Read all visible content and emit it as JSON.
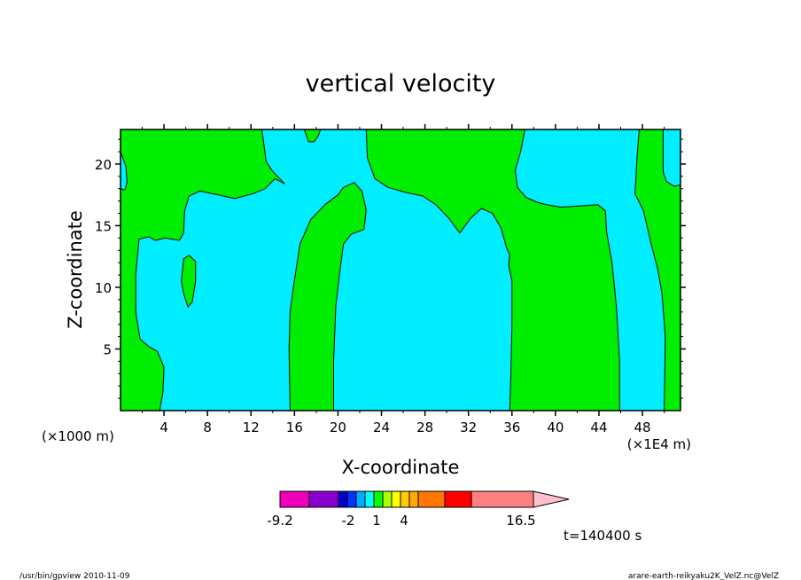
{
  "chart_data": {
    "type": "heatmap",
    "title": "vertical velocity",
    "xlabel": "X-coordinate",
    "ylabel": "Z-coordinate",
    "x_unit_left": "(×1000 m)",
    "x_unit_right": "(×1E4 m)",
    "xlim": [
      0,
      51.5
    ],
    "ylim": [
      0,
      22.8
    ],
    "x_ticks": [
      "4",
      "8",
      "12",
      "16",
      "20",
      "24",
      "28",
      "32",
      "36",
      "40",
      "44",
      "48"
    ],
    "y_ticks": [
      "5",
      "10",
      "15",
      "20"
    ],
    "background_level_color": "#00eeff",
    "positive_region_color": "#00ee00",
    "regions": [
      {
        "level": "green",
        "points": [
          [
            0,
            0
          ],
          [
            3.6,
            0
          ],
          [
            3.9,
            1.5
          ],
          [
            4.0,
            3.5
          ],
          [
            3.4,
            4.8
          ],
          [
            2.6,
            5.2
          ],
          [
            1.8,
            5.8
          ],
          [
            1.4,
            8.0
          ],
          [
            1.4,
            11.0
          ],
          [
            1.7,
            13.9
          ],
          [
            2.6,
            14.1
          ],
          [
            3.2,
            13.8
          ],
          [
            4.1,
            14.0
          ],
          [
            5.4,
            13.8
          ],
          [
            5.8,
            14.4
          ],
          [
            5.9,
            16.2
          ],
          [
            6.3,
            17.4
          ],
          [
            7.3,
            17.8
          ],
          [
            9.0,
            17.5
          ],
          [
            10.5,
            17.2
          ],
          [
            12.2,
            17.6
          ],
          [
            13.3,
            18.0
          ],
          [
            14.2,
            18.8
          ],
          [
            15.1,
            18.4
          ],
          [
            14.0,
            19.4
          ],
          [
            13.4,
            20.2
          ],
          [
            13.0,
            22.8
          ],
          [
            0,
            22.8
          ],
          [
            0,
            21.0
          ],
          [
            0.5,
            19.8
          ],
          [
            0.6,
            18.5
          ],
          [
            0.4,
            17.9
          ],
          [
            0,
            18.0
          ]
        ]
      },
      {
        "level": "green",
        "points": [
          [
            15.6,
            0
          ],
          [
            19.6,
            0
          ],
          [
            19.6,
            4.0
          ],
          [
            19.8,
            8.5
          ],
          [
            20.2,
            11.5
          ],
          [
            20.5,
            13.5
          ],
          [
            21.2,
            14.3
          ],
          [
            22.4,
            14.7
          ],
          [
            22.6,
            16.3
          ],
          [
            22.2,
            17.8
          ],
          [
            21.5,
            18.5
          ],
          [
            20.5,
            18.1
          ],
          [
            20.0,
            17.5
          ],
          [
            18.8,
            16.7
          ],
          [
            17.5,
            15.5
          ],
          [
            16.5,
            13.5
          ],
          [
            15.9,
            10.0
          ],
          [
            15.6,
            8.0
          ],
          [
            15.5,
            5.0
          ]
        ]
      },
      {
        "level": "green",
        "points": [
          [
            22.6,
            22.8
          ],
          [
            22.7,
            20.5
          ],
          [
            23.4,
            18.8
          ],
          [
            24.6,
            18.1
          ],
          [
            26.2,
            17.7
          ],
          [
            27.8,
            17.4
          ],
          [
            29.0,
            16.7
          ],
          [
            30.2,
            15.6
          ],
          [
            31.2,
            14.4
          ],
          [
            32.2,
            15.6
          ],
          [
            33.2,
            16.4
          ],
          [
            34.2,
            16.0
          ],
          [
            35.0,
            14.8
          ],
          [
            35.5,
            13.2
          ],
          [
            35.8,
            12.6
          ],
          [
            35.7,
            11.8
          ],
          [
            36.0,
            10.5
          ],
          [
            36.0,
            7.0
          ],
          [
            35.9,
            3.0
          ],
          [
            35.8,
            0
          ],
          [
            45.9,
            0
          ],
          [
            45.9,
            4.0
          ],
          [
            45.6,
            8.5
          ],
          [
            45.2,
            12.0
          ],
          [
            44.7,
            14.5
          ],
          [
            44.6,
            16.2
          ],
          [
            43.9,
            16.7
          ],
          [
            42.2,
            16.6
          ],
          [
            40.5,
            16.5
          ],
          [
            39.2,
            16.7
          ],
          [
            38.3,
            16.9
          ],
          [
            37.3,
            17.3
          ],
          [
            36.5,
            18.1
          ],
          [
            36.3,
            19.5
          ],
          [
            36.8,
            21.0
          ],
          [
            37.2,
            22.8
          ]
        ]
      },
      {
        "level": "green",
        "points": [
          [
            50.0,
            0
          ],
          [
            51.5,
            0
          ],
          [
            51.5,
            18.3
          ],
          [
            50.9,
            18.2
          ],
          [
            50.2,
            18.6
          ],
          [
            49.9,
            19.4
          ],
          [
            49.9,
            22.8
          ],
          [
            47.7,
            22.8
          ],
          [
            47.5,
            20.5
          ],
          [
            47.4,
            18.9
          ],
          [
            47.3,
            17.6
          ],
          [
            48.1,
            16.2
          ],
          [
            48.8,
            13.5
          ],
          [
            49.4,
            11.5
          ],
          [
            49.8,
            9.5
          ],
          [
            50.1,
            6.0
          ]
        ]
      },
      {
        "level": "green",
        "points": [
          [
            6.3,
            12.6
          ],
          [
            5.8,
            12.3
          ],
          [
            5.6,
            10.5
          ],
          [
            5.8,
            9.5
          ],
          [
            6.2,
            8.4
          ],
          [
            6.6,
            8.8
          ],
          [
            6.9,
            10.5
          ],
          [
            6.9,
            12.1
          ]
        ]
      },
      {
        "level": "green",
        "points": [
          [
            16.9,
            22.8
          ],
          [
            17.3,
            21.8
          ],
          [
            17.8,
            21.8
          ],
          [
            18.2,
            22.3
          ],
          [
            18.4,
            22.8
          ]
        ]
      }
    ],
    "colorbar": {
      "colors": [
        "#ee00bb",
        "#8800cc",
        "#0000cc",
        "#0033ff",
        "#00aaff",
        "#00ffff",
        "#00ff00",
        "#aaff00",
        "#ffff00",
        "#ffcc00",
        "#ffaa00",
        "#ff7700",
        "#ff0000",
        "#ff8080"
      ],
      "labels": [
        "-9.2",
        "-2",
        "1",
        "4",
        "16.5"
      ],
      "arrow_color": "#ffc0cb"
    },
    "time_label": "t=140400 s"
  },
  "footer": {
    "left": "/usr/bin/gpview   2010-11-09",
    "right": "arare-earth-reikyaku2K_VelZ.nc@VelZ"
  }
}
